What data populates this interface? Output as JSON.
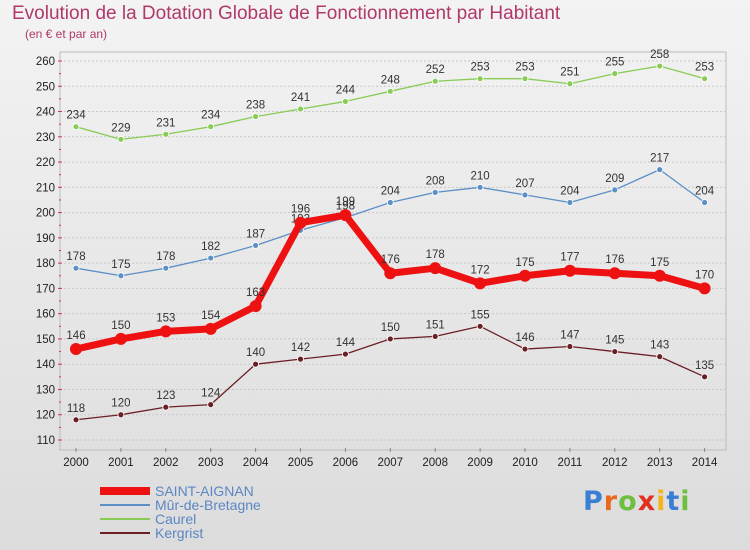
{
  "chart_data": {
    "type": "line",
    "title": "Evolution de la Dotation Globale de Fonctionnement par Habitant",
    "subtitle": "(en € et par an)",
    "x": [
      "2000",
      "2001",
      "2002",
      "2003",
      "2004",
      "2005",
      "2006",
      "2007",
      "2008",
      "2009",
      "2010",
      "2011",
      "2012",
      "2013",
      "2014"
    ],
    "ylim": [
      110,
      260
    ],
    "yticks": [
      110,
      120,
      130,
      140,
      150,
      160,
      170,
      180,
      190,
      200,
      210,
      220,
      230,
      240,
      250,
      260
    ],
    "grid": "horizontal",
    "series": [
      {
        "name": "Caurel",
        "color": "#88cc55",
        "values": [
          234,
          229,
          231,
          234,
          238,
          241,
          244,
          248,
          252,
          253,
          253,
          251,
          255,
          258,
          253
        ]
      },
      {
        "name": "Mûr-de-Bretagne",
        "color": "#5b8fc6",
        "values": [
          178,
          175,
          178,
          182,
          187,
          193,
          198,
          204,
          208,
          210,
          207,
          204,
          209,
          217,
          204
        ]
      },
      {
        "name": "SAINT-AIGNAN",
        "color": "#ee1111",
        "values": [
          146,
          150,
          153,
          154,
          163,
          196,
          199,
          176,
          178,
          172,
          175,
          177,
          176,
          175,
          170
        ]
      },
      {
        "name": "Kergrist",
        "color": "#6b1f24",
        "values": [
          118,
          120,
          123,
          124,
          140,
          142,
          144,
          150,
          151,
          155,
          146,
          147,
          145,
          143,
          135
        ]
      }
    ],
    "legend_order": [
      "SAINT-AIGNAN",
      "Mûr-de-Bretagne",
      "Caurel",
      "Kergrist"
    ]
  },
  "brand": {
    "text": "Proxiti"
  }
}
